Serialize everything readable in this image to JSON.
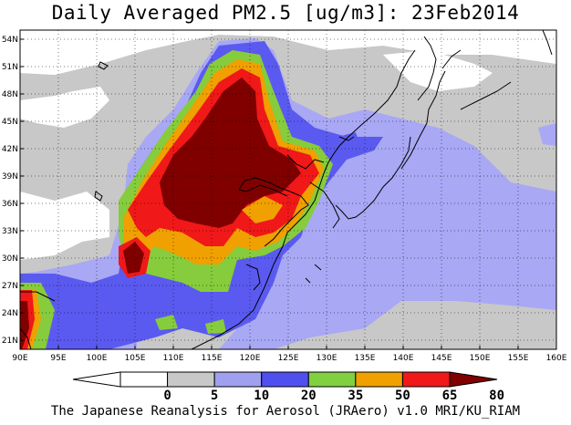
{
  "title": "Daily Averaged PM2.5 [ug/m3]: 23Feb2014",
  "footer": "The Japanese Reanalysis for Aerosol (JRAero) v1.0 MRI/KU_RIAM",
  "map": {
    "lon_labels": [
      "90E",
      "95E",
      "100E",
      "105E",
      "110E",
      "115E",
      "120E",
      "125E",
      "130E",
      "135E",
      "140E",
      "145E",
      "150E",
      "155E",
      "160E"
    ],
    "lat_labels": [
      "21N",
      "24N",
      "27N",
      "30N",
      "33N",
      "36N",
      "39N",
      "42N",
      "45N",
      "48N",
      "51N",
      "54N"
    ],
    "lon_range": [
      90,
      160
    ],
    "lat_range": [
      20,
      55
    ],
    "grid": true
  },
  "colorbar": {
    "labels": [
      "0",
      "5",
      "10",
      "20",
      "35",
      "50",
      "65",
      "80"
    ],
    "colors": [
      "#ffffff",
      "#ffffff",
      "#c8c8c8",
      "#a0a0f0",
      "#5050f0",
      "#80d040",
      "#f0a000",
      "#f01818",
      "#800000"
    ]
  },
  "legend_colors": {
    "c5": "#c8c8c8",
    "c10": "#a8a8f4",
    "c20": "#5a5af0",
    "c35": "#86cc3c",
    "c50": "#f0a000",
    "c65": "#f01818",
    "c80": "#800000"
  }
}
